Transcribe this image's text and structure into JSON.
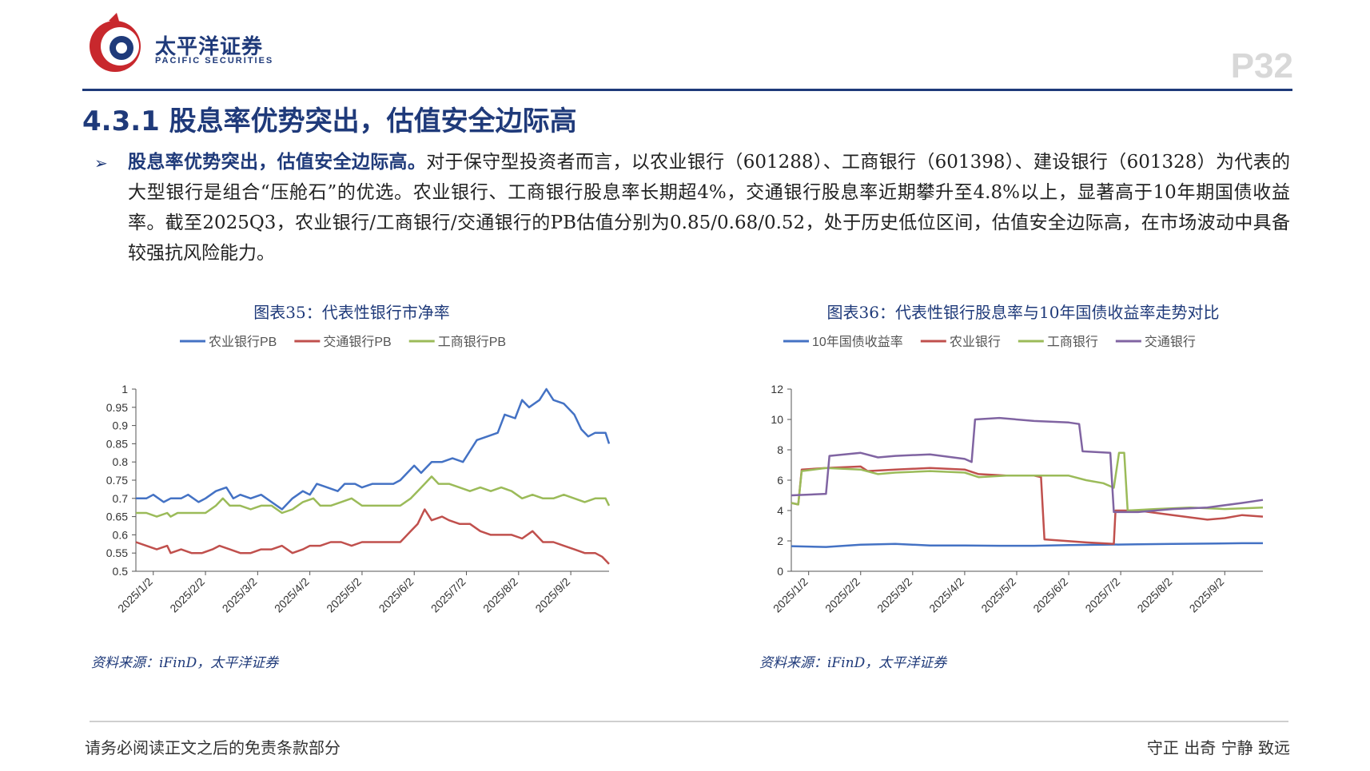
{
  "brand": {
    "name_cn": "太平洋证券",
    "name_en": "PACIFIC SECURITIES",
    "color": "#1f3a7a",
    "accent": "#c8282d"
  },
  "page_number": "P32",
  "section_title": "4.3.1 股息率优势突出，估值安全边际高",
  "paragraph": {
    "lead": "股息率优势突出，估值安全边际高。",
    "body": "对于保守型投资者而言，以农业银行（601288）、工商银行（601398）、建设银行（601328）为代表的大型银行是组合“压舱石”的优选。农业银行、工商银行股息率长期超4%，交通银行股息率近期攀升至4.8%以上，显著高于10年期国债收益率。截至2025Q3，农业银行/工商银行/交通银行的PB估值分别为0.85/0.68/0.52，处于历史低位区间，估值安全边际高，在市场波动中具备较强抗风险能力。"
  },
  "chart_data": [
    {
      "type": "line",
      "title": "图表35：代表性银行市净率",
      "x_ticks": [
        "2025/1/2",
        "2025/2/2",
        "2025/3/2",
        "2025/4/2",
        "2025/5/2",
        "2025/6/2",
        "2025/7/2",
        "2025/8/2",
        "2025/9/2"
      ],
      "ylim": [
        0.5,
        1
      ],
      "y_ticks": [
        "0.5",
        "0.55",
        "0.6",
        "0.65",
        "0.7",
        "0.75",
        "0.8",
        "0.85",
        "0.9",
        "0.95",
        "1"
      ],
      "legend_position": "top",
      "series": [
        {
          "name": "农业银行PB",
          "color": "#4472c4",
          "points": [
            [
              0,
              0.7
            ],
            [
              0.3,
              0.7
            ],
            [
              0.5,
              0.71
            ],
            [
              0.8,
              0.69
            ],
            [
              1.0,
              0.7
            ],
            [
              1.3,
              0.7
            ],
            [
              1.5,
              0.71
            ],
            [
              1.8,
              0.69
            ],
            [
              2.0,
              0.7
            ],
            [
              2.3,
              0.72
            ],
            [
              2.6,
              0.73
            ],
            [
              2.8,
              0.7
            ],
            [
              3.0,
              0.71
            ],
            [
              3.3,
              0.7
            ],
            [
              3.6,
              0.71
            ],
            [
              3.9,
              0.69
            ],
            [
              4.2,
              0.67
            ],
            [
              4.5,
              0.7
            ],
            [
              4.8,
              0.72
            ],
            [
              5.0,
              0.71
            ],
            [
              5.2,
              0.74
            ],
            [
              5.5,
              0.73
            ],
            [
              5.8,
              0.72
            ],
            [
              6.0,
              0.74
            ],
            [
              6.3,
              0.74
            ],
            [
              6.5,
              0.73
            ],
            [
              6.8,
              0.74
            ],
            [
              7.1,
              0.74
            ],
            [
              7.4,
              0.74
            ],
            [
              7.6,
              0.75
            ],
            [
              7.8,
              0.77
            ],
            [
              8.0,
              0.79
            ],
            [
              8.2,
              0.77
            ],
            [
              8.5,
              0.8
            ],
            [
              8.8,
              0.8
            ],
            [
              9.1,
              0.81
            ],
            [
              9.4,
              0.8
            ],
            [
              9.6,
              0.83
            ],
            [
              9.8,
              0.86
            ],
            [
              10.1,
              0.87
            ],
            [
              10.4,
              0.88
            ],
            [
              10.6,
              0.93
            ],
            [
              10.9,
              0.92
            ],
            [
              11.1,
              0.97
            ],
            [
              11.3,
              0.95
            ],
            [
              11.6,
              0.97
            ],
            [
              11.8,
              1.0
            ],
            [
              12.0,
              0.97
            ],
            [
              12.3,
              0.96
            ],
            [
              12.6,
              0.93
            ],
            [
              12.8,
              0.89
            ],
            [
              13.0,
              0.87
            ],
            [
              13.2,
              0.88
            ],
            [
              13.5,
              0.88
            ],
            [
              13.6,
              0.85
            ]
          ]
        },
        {
          "name": "交通银行PB",
          "color": "#c0504d",
          "points": [
            [
              0,
              0.58
            ],
            [
              0.3,
              0.57
            ],
            [
              0.6,
              0.56
            ],
            [
              0.9,
              0.57
            ],
            [
              1.0,
              0.55
            ],
            [
              1.3,
              0.56
            ],
            [
              1.6,
              0.55
            ],
            [
              1.9,
              0.55
            ],
            [
              2.2,
              0.56
            ],
            [
              2.4,
              0.57
            ],
            [
              2.7,
              0.56
            ],
            [
              3.0,
              0.55
            ],
            [
              3.3,
              0.55
            ],
            [
              3.6,
              0.56
            ],
            [
              3.9,
              0.56
            ],
            [
              4.2,
              0.57
            ],
            [
              4.5,
              0.55
            ],
            [
              4.8,
              0.56
            ],
            [
              5.0,
              0.57
            ],
            [
              5.3,
              0.57
            ],
            [
              5.6,
              0.58
            ],
            [
              5.9,
              0.58
            ],
            [
              6.2,
              0.57
            ],
            [
              6.5,
              0.58
            ],
            [
              6.8,
              0.58
            ],
            [
              7.1,
              0.58
            ],
            [
              7.4,
              0.58
            ],
            [
              7.6,
              0.58
            ],
            [
              7.9,
              0.61
            ],
            [
              8.1,
              0.63
            ],
            [
              8.3,
              0.67
            ],
            [
              8.5,
              0.64
            ],
            [
              8.8,
              0.65
            ],
            [
              9.0,
              0.64
            ],
            [
              9.3,
              0.63
            ],
            [
              9.6,
              0.63
            ],
            [
              9.9,
              0.61
            ],
            [
              10.2,
              0.6
            ],
            [
              10.5,
              0.6
            ],
            [
              10.8,
              0.6
            ],
            [
              11.1,
              0.59
            ],
            [
              11.4,
              0.61
            ],
            [
              11.7,
              0.58
            ],
            [
              12.0,
              0.58
            ],
            [
              12.3,
              0.57
            ],
            [
              12.6,
              0.56
            ],
            [
              12.9,
              0.55
            ],
            [
              13.2,
              0.55
            ],
            [
              13.4,
              0.54
            ],
            [
              13.6,
              0.52
            ]
          ]
        },
        {
          "name": "工商银行PB",
          "color": "#9bbb59",
          "points": [
            [
              0,
              0.66
            ],
            [
              0.3,
              0.66
            ],
            [
              0.6,
              0.65
            ],
            [
              0.9,
              0.66
            ],
            [
              1.0,
              0.65
            ],
            [
              1.2,
              0.66
            ],
            [
              1.5,
              0.66
            ],
            [
              1.8,
              0.66
            ],
            [
              2.0,
              0.66
            ],
            [
              2.3,
              0.68
            ],
            [
              2.5,
              0.7
            ],
            [
              2.7,
              0.68
            ],
            [
              3.0,
              0.68
            ],
            [
              3.3,
              0.67
            ],
            [
              3.6,
              0.68
            ],
            [
              3.9,
              0.68
            ],
            [
              4.2,
              0.66
            ],
            [
              4.5,
              0.67
            ],
            [
              4.8,
              0.69
            ],
            [
              5.1,
              0.7
            ],
            [
              5.3,
              0.68
            ],
            [
              5.6,
              0.68
            ],
            [
              5.9,
              0.69
            ],
            [
              6.2,
              0.7
            ],
            [
              6.5,
              0.68
            ],
            [
              6.8,
              0.68
            ],
            [
              7.1,
              0.68
            ],
            [
              7.4,
              0.68
            ],
            [
              7.6,
              0.68
            ],
            [
              7.9,
              0.7
            ],
            [
              8.1,
              0.72
            ],
            [
              8.3,
              0.74
            ],
            [
              8.5,
              0.76
            ],
            [
              8.7,
              0.74
            ],
            [
              9.0,
              0.74
            ],
            [
              9.3,
              0.73
            ],
            [
              9.6,
              0.72
            ],
            [
              9.9,
              0.73
            ],
            [
              10.2,
              0.72
            ],
            [
              10.5,
              0.73
            ],
            [
              10.8,
              0.72
            ],
            [
              11.1,
              0.7
            ],
            [
              11.4,
              0.71
            ],
            [
              11.7,
              0.7
            ],
            [
              12.0,
              0.7
            ],
            [
              12.3,
              0.71
            ],
            [
              12.6,
              0.7
            ],
            [
              12.9,
              0.69
            ],
            [
              13.2,
              0.7
            ],
            [
              13.5,
              0.7
            ],
            [
              13.6,
              0.68
            ]
          ]
        }
      ]
    },
    {
      "type": "line",
      "title": "图表36：代表性银行股息率与10年国债收益率走势对比",
      "x_ticks": [
        "2025/1/2",
        "2025/2/2",
        "2025/3/2",
        "2025/4/2",
        "2025/5/2",
        "2025/6/2",
        "2025/7/2",
        "2025/8/2",
        "2025/9/2"
      ],
      "ylim": [
        0,
        12
      ],
      "y_ticks": [
        "0",
        "2",
        "4",
        "6",
        "8",
        "10",
        "12"
      ],
      "legend_position": "top",
      "series": [
        {
          "name": "10年国债收益率",
          "color": "#4472c4",
          "points": [
            [
              0,
              1.65
            ],
            [
              1,
              1.6
            ],
            [
              2,
              1.75
            ],
            [
              3,
              1.8
            ],
            [
              4,
              1.7
            ],
            [
              5,
              1.7
            ],
            [
              6,
              1.68
            ],
            [
              7,
              1.68
            ],
            [
              8,
              1.72
            ],
            [
              9,
              1.75
            ],
            [
              10,
              1.78
            ],
            [
              11,
              1.8
            ],
            [
              12,
              1.82
            ],
            [
              13,
              1.85
            ],
            [
              13.6,
              1.85
            ]
          ]
        },
        {
          "name": "农业银行",
          "color": "#c0504d",
          "points": [
            [
              0,
              4.5
            ],
            [
              0.2,
              4.4
            ],
            [
              0.3,
              6.7
            ],
            [
              1.0,
              6.8
            ],
            [
              2.0,
              6.9
            ],
            [
              2.2,
              6.6
            ],
            [
              3.0,
              6.7
            ],
            [
              4.0,
              6.8
            ],
            [
              5.0,
              6.7
            ],
            [
              5.4,
              6.4
            ],
            [
              6.2,
              6.3
            ],
            [
              7.0,
              6.3
            ],
            [
              7.2,
              6.2
            ],
            [
              7.3,
              2.1
            ],
            [
              8.5,
              1.9
            ],
            [
              9.3,
              1.8
            ],
            [
              9.35,
              4.0
            ],
            [
              10.0,
              4.0
            ],
            [
              11.0,
              3.7
            ],
            [
              12.0,
              3.4
            ],
            [
              12.5,
              3.5
            ],
            [
              13.0,
              3.7
            ],
            [
              13.6,
              3.6
            ]
          ]
        },
        {
          "name": "工商银行",
          "color": "#9bbb59",
          "points": [
            [
              0,
              4.5
            ],
            [
              0.2,
              4.4
            ],
            [
              0.3,
              6.6
            ],
            [
              1.0,
              6.8
            ],
            [
              2.0,
              6.7
            ],
            [
              2.5,
              6.4
            ],
            [
              3.0,
              6.5
            ],
            [
              4.0,
              6.6
            ],
            [
              5.0,
              6.5
            ],
            [
              5.4,
              6.2
            ],
            [
              6.2,
              6.3
            ],
            [
              7.0,
              6.3
            ],
            [
              8.0,
              6.3
            ],
            [
              8.5,
              6.0
            ],
            [
              9.0,
              5.8
            ],
            [
              9.3,
              5.5
            ],
            [
              9.45,
              7.8
            ],
            [
              9.6,
              7.8
            ],
            [
              9.7,
              4.0
            ],
            [
              10.5,
              4.1
            ],
            [
              11.5,
              4.2
            ],
            [
              12.5,
              4.1
            ],
            [
              13.6,
              4.2
            ]
          ]
        },
        {
          "name": "交通银行",
          "color": "#8064a2",
          "points": [
            [
              0,
              5.0
            ],
            [
              1.0,
              5.1
            ],
            [
              1.1,
              7.6
            ],
            [
              2.0,
              7.8
            ],
            [
              2.5,
              7.5
            ],
            [
              3.0,
              7.6
            ],
            [
              4.0,
              7.7
            ],
            [
              5.0,
              7.4
            ],
            [
              5.2,
              7.2
            ],
            [
              5.3,
              10.0
            ],
            [
              6.0,
              10.1
            ],
            [
              7.0,
              9.9
            ],
            [
              8.0,
              9.8
            ],
            [
              8.3,
              9.7
            ],
            [
              8.4,
              7.9
            ],
            [
              9.2,
              7.8
            ],
            [
              9.3,
              3.9
            ],
            [
              10.0,
              3.9
            ],
            [
              11.0,
              4.1
            ],
            [
              12.0,
              4.2
            ],
            [
              13.0,
              4.5
            ],
            [
              13.6,
              4.7
            ]
          ]
        }
      ]
    }
  ],
  "sources": [
    "资料来源：iFinD，太平洋证券",
    "资料来源：iFinD，太平洋证券"
  ],
  "footer": {
    "left": "请务必阅读正文之后的免责条款部分",
    "right": "守正  出奇  宁静  致远"
  }
}
